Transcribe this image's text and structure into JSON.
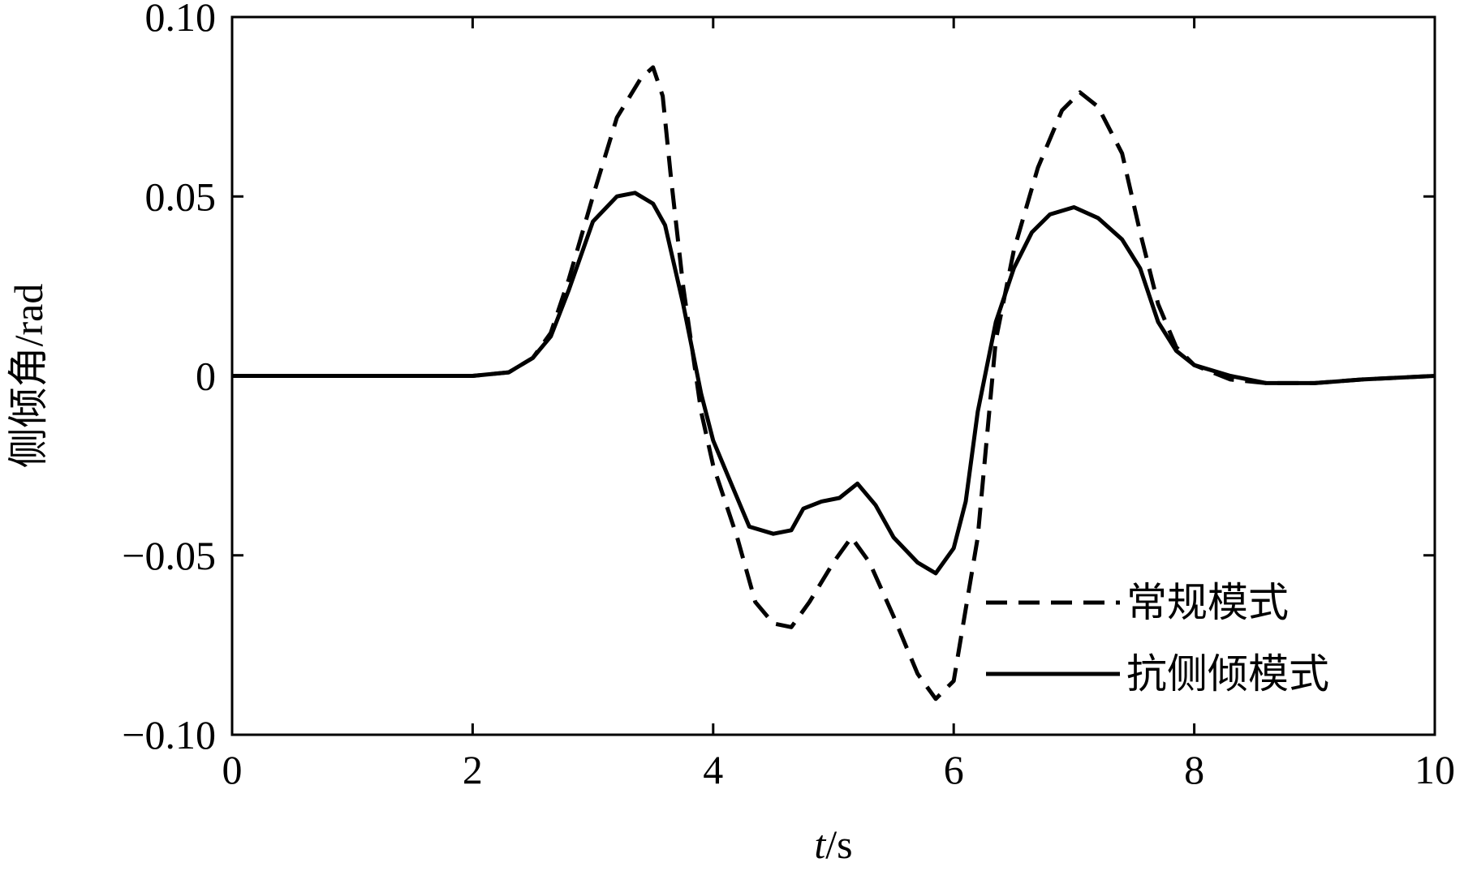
{
  "chart_data": {
    "type": "line",
    "xlabel_italic": "t",
    "xlabel_rest": "/s",
    "ylabel": "侧倾角/rad",
    "xlim": [
      0,
      10
    ],
    "ylim": [
      -0.1,
      0.1
    ],
    "x_ticks": [
      0,
      2,
      4,
      6,
      8,
      10
    ],
    "x_tick_labels": [
      "0",
      "2",
      "4",
      "6",
      "8",
      "10"
    ],
    "y_ticks": [
      0.1,
      0.05,
      0,
      -0.05,
      -0.1
    ],
    "y_tick_labels": [
      "0.10",
      "0.05",
      "0",
      "−0.05",
      "−0.10"
    ],
    "grid": false,
    "legend_position": "bottom-right",
    "series": [
      {
        "name": "常规模式",
        "style": "dashed",
        "color": "#000000",
        "x": [
          0,
          2.0,
          2.3,
          2.5,
          2.65,
          2.8,
          3.0,
          3.2,
          3.4,
          3.5,
          3.58,
          3.65,
          3.75,
          3.9,
          4.0,
          4.2,
          4.35,
          4.5,
          4.65,
          4.8,
          5.0,
          5.15,
          5.3,
          5.5,
          5.7,
          5.85,
          6.0,
          6.2,
          6.35,
          6.5,
          6.7,
          6.9,
          7.05,
          7.2,
          7.4,
          7.55,
          7.7,
          7.85,
          8.0,
          8.3,
          8.6,
          9.0,
          9.4,
          10.0
        ],
        "y": [
          0,
          0,
          0.001,
          0.005,
          0.012,
          0.027,
          0.05,
          0.072,
          0.083,
          0.086,
          0.078,
          0.055,
          0.025,
          -0.01,
          -0.025,
          -0.045,
          -0.063,
          -0.069,
          -0.07,
          -0.063,
          -0.052,
          -0.045,
          -0.052,
          -0.067,
          -0.083,
          -0.09,
          -0.085,
          -0.045,
          0.01,
          0.035,
          0.058,
          0.074,
          0.079,
          0.075,
          0.062,
          0.04,
          0.02,
          0.008,
          0.003,
          -0.001,
          -0.002,
          -0.002,
          -0.001,
          0
        ]
      },
      {
        "name": "抗侧倾模式",
        "style": "solid",
        "color": "#000000",
        "x": [
          0,
          2.0,
          2.3,
          2.5,
          2.65,
          2.8,
          3.0,
          3.2,
          3.35,
          3.5,
          3.6,
          3.75,
          3.9,
          4.0,
          4.15,
          4.3,
          4.5,
          4.65,
          4.75,
          4.9,
          5.05,
          5.2,
          5.35,
          5.5,
          5.7,
          5.85,
          6.0,
          6.1,
          6.2,
          6.35,
          6.5,
          6.65,
          6.8,
          7.0,
          7.2,
          7.4,
          7.55,
          7.7,
          7.85,
          8.0,
          8.3,
          8.6,
          9.0,
          9.4,
          10.0
        ],
        "y": [
          0,
          0,
          0.001,
          0.005,
          0.011,
          0.024,
          0.043,
          0.05,
          0.051,
          0.048,
          0.042,
          0.02,
          -0.005,
          -0.018,
          -0.03,
          -0.042,
          -0.044,
          -0.043,
          -0.037,
          -0.035,
          -0.034,
          -0.03,
          -0.036,
          -0.045,
          -0.052,
          -0.055,
          -0.048,
          -0.035,
          -0.01,
          0.015,
          0.03,
          0.04,
          0.045,
          0.047,
          0.044,
          0.038,
          0.03,
          0.015,
          0.007,
          0.003,
          0,
          -0.002,
          -0.002,
          -0.001,
          0
        ]
      }
    ]
  }
}
